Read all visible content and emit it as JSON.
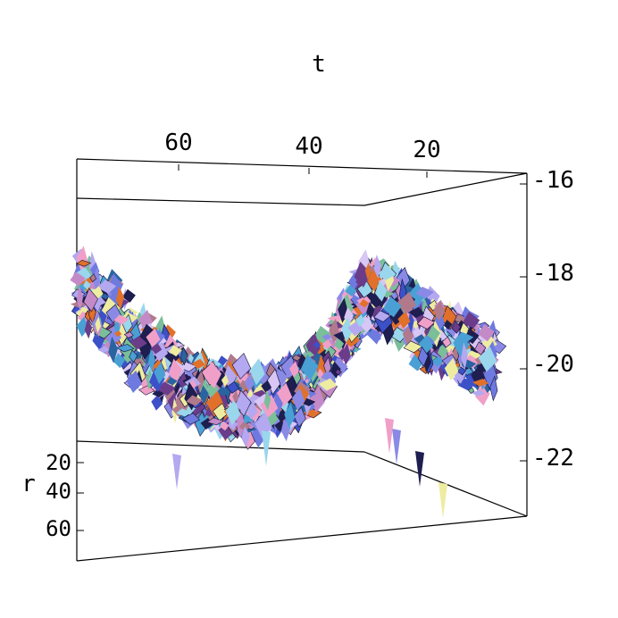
{
  "chart_data": {
    "type": "surface3d",
    "title": "",
    "axes": {
      "t": {
        "label": "t",
        "ticks": [
          "60",
          "40",
          "20"
        ],
        "range": [
          0,
          75
        ],
        "direction": "decreasing-left-to-right"
      },
      "r": {
        "label": "r",
        "ticks": [
          "20",
          "40",
          "60"
        ],
        "range": [
          0,
          75
        ]
      },
      "z": {
        "label": "",
        "ticks": [
          "-16",
          "-18",
          "-20",
          "-22"
        ],
        "range": [
          -23.2,
          -15.8
        ]
      }
    },
    "grid": false,
    "legend": "none",
    "box": true,
    "surface_profile": {
      "description_units": "z value (mean) along t",
      "t": [
        75,
        70,
        65,
        60,
        55,
        50,
        45,
        40,
        35,
        30,
        25,
        20,
        15,
        10,
        5,
        3
      ],
      "z_mean": [
        -18.0,
        -18.6,
        -19.3,
        -19.8,
        -20.3,
        -20.5,
        -20.6,
        -20.5,
        -20.2,
        -19.3,
        -18.2,
        -18.5,
        -19.0,
        -19.3,
        -19.6,
        -19.8
      ],
      "noise_amplitude": 1.4
    },
    "colors": [
      "#8a8ae6",
      "#b4a8f0",
      "#3c50c8",
      "#6e7ae0",
      "#c48ac8",
      "#e0702a",
      "#1e1e50",
      "#9ad6ec",
      "#d8c6f4",
      "#6a3c8a",
      "#b07a8c",
      "#4aa0d4",
      "#eeeca0",
      "#2a64a0",
      "#f0a0c8",
      "#7abe9a"
    ]
  }
}
